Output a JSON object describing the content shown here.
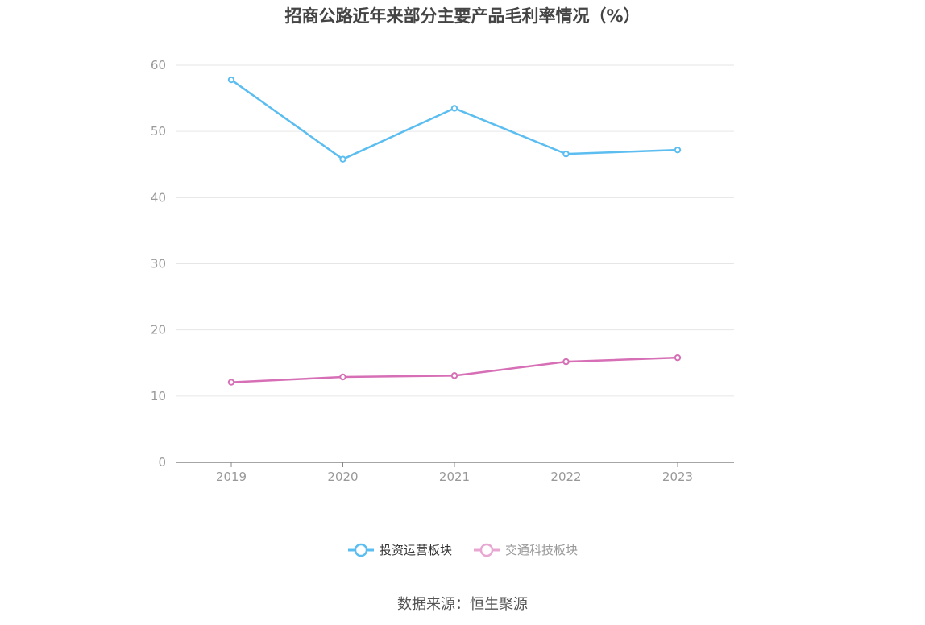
{
  "title": "招商公路近年来部分主要产品毛利率情况（%）",
  "source": "数据来源：恒生聚源",
  "chart_data": {
    "type": "line",
    "title": "招商公路近年来部分主要产品毛利率情况（%）",
    "x": [
      "2019",
      "2020",
      "2021",
      "2022",
      "2023"
    ],
    "ylim": [
      0,
      60
    ],
    "yticks": [
      "0",
      "10",
      "20",
      "30",
      "40",
      "50",
      "60"
    ],
    "grid": true,
    "legend_position": "bottom",
    "series": [
      {
        "name": "投资运营板块",
        "color": "#5bbdf0",
        "values": [
          57.8,
          45.8,
          53.5,
          46.6,
          47.2
        ]
      },
      {
        "name": "交通科技板块",
        "color": "#d66fb5",
        "values": [
          12.1,
          12.9,
          13.1,
          15.2,
          15.8
        ]
      }
    ]
  },
  "legend": {
    "series_0_color": "#5bbdf0",
    "series_1_color": "#e8a6d2",
    "series_0_text_color": "#333333",
    "series_1_text_color": "#999999"
  }
}
